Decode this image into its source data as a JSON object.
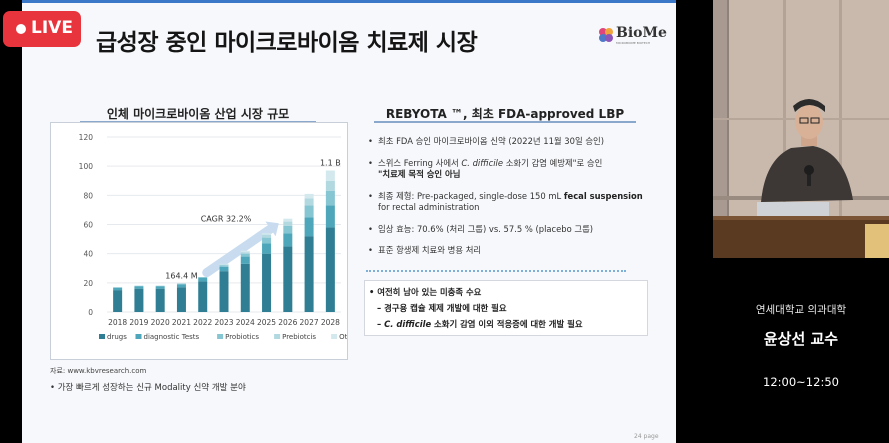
{
  "live_badge": {
    "label": "LIVE"
  },
  "slide": {
    "title": "급성장 중인 마이크로바이옴 치료제 시장",
    "logo_text": "BioMe",
    "logo_tagline": "MICROBIOME BIOTECH",
    "page_number": "24 page"
  },
  "left_panel": {
    "heading": "인체 마이크로바이옴 산업 시장 규모",
    "source": "자료: www.kbvresearch.com",
    "note": "• 가장 빠르게 성장하는 신규 Modality 신약 개발 분야"
  },
  "right_panel": {
    "heading": "REBYOTA ™, 최초 FDA-approved LBP",
    "bullets": [
      [
        "최초 FDA 승인 마이크로바이옴 신약 (2022년 11월 30일 승인)"
      ],
      [
        "스위스 Ferring 사에서 ",
        "C. difficile",
        " 소화기 감염 예방제\"로 승인"
      ],
      [
        "최종 제형: Pre-packaged, single-dose 150 mL ",
        "fecal suspension",
        " for rectal administration"
      ],
      [
        "임상 효능: 70.6% (처리 그룹) vs. 57.5 % (placebo 그룹)"
      ],
      [
        "표준 항생제 치료와 병용 처리"
      ]
    ],
    "bullet2_line2": "\"치료제 목적 승인 아님",
    "unmet": {
      "title": "• 여전히 남아 있는 미충족 수요",
      "item1": "– 경구용 캡슐 제제 개발에 대한 필요",
      "item2_pre": "– ",
      "item2_italic": "C. difficile",
      "item2_post": " 소화기 감염 이외 적응증에 대한 개발 필요"
    }
  },
  "speaker": {
    "affiliation": "연세대학교 의과대학",
    "name": "윤상선 교수",
    "time": "12:00~12:50"
  },
  "chart_data": {
    "type": "bar",
    "stacked": true,
    "categories": [
      "2018",
      "2019",
      "2020",
      "2021",
      "2022",
      "2023",
      "2024",
      "2025",
      "2026",
      "2027",
      "2028"
    ],
    "ylim": [
      0,
      120
    ],
    "yticks": [
      0,
      20,
      40,
      60,
      80,
      100,
      120
    ],
    "grid": true,
    "legend_position": "bottom",
    "series": [
      {
        "name": "drugs",
        "color": "#2f7e93",
        "values": [
          15,
          16,
          16,
          17,
          21,
          28,
          33,
          40,
          45,
          52,
          58
        ]
      },
      {
        "name": "diagnostic Tests",
        "color": "#4ea6ba",
        "values": [
          1.5,
          1.5,
          1.5,
          2,
          2.5,
          3,
          5,
          7,
          9,
          13,
          15
        ]
      },
      {
        "name": "Probiotics",
        "color": "#86c5d2",
        "values": [
          0.5,
          0.5,
          0.5,
          0.5,
          0.5,
          1,
          2,
          4,
          5,
          8,
          10
        ]
      },
      {
        "name": "Prebiotcis",
        "color": "#b2d8e0",
        "values": [
          0,
          0,
          0,
          0,
          0,
          0.5,
          1,
          2,
          3,
          5,
          7
        ]
      },
      {
        "name": "Others",
        "color": "#d3e9ee",
        "values": [
          0,
          0,
          0,
          0,
          0,
          0.5,
          1,
          1,
          2,
          3,
          7
        ]
      }
    ],
    "annotations": [
      {
        "text": "164.4 M",
        "category": "2021"
      },
      {
        "text": "1.1 B",
        "category": "2028"
      },
      {
        "text": "CAGR 32.2%",
        "from": "2022",
        "to": "2025"
      }
    ]
  }
}
